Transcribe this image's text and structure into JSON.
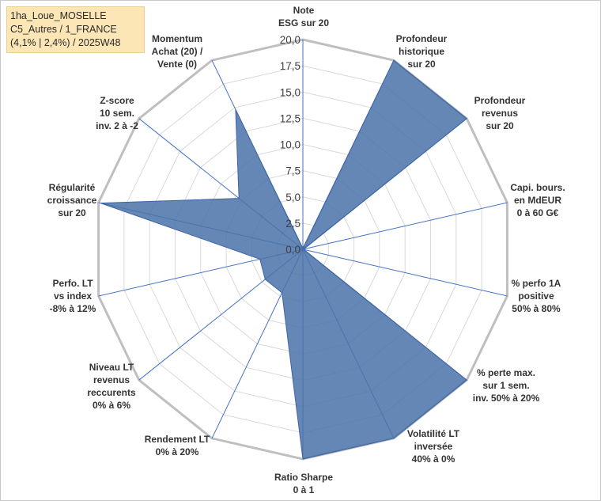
{
  "title": {
    "line1": "1ha_Loue_MOSELLE",
    "line2": "C5_Autres / 1_FRANCE",
    "line3": "(4,1% | 2,4%) / 2025W48"
  },
  "chart_data": {
    "type": "radar",
    "rmin": 0,
    "rmax": 20,
    "ticks": [
      "0,0",
      "2,5",
      "5,0",
      "7,5",
      "10,0",
      "12,5",
      "15,0",
      "17,5",
      "20,0"
    ],
    "axes": [
      {
        "label": [
          "Note",
          "ESG sur 20"
        ]
      },
      {
        "label": [
          "Profondeur",
          "historique",
          "sur 20"
        ]
      },
      {
        "label": [
          "Profondeur",
          "revenus",
          "sur 20"
        ]
      },
      {
        "label": [
          "Capi. bours.",
          "en MdEUR",
          "0 à 60 G€"
        ]
      },
      {
        "label": [
          "% perfo 1A",
          "positive",
          "50% à 80%"
        ]
      },
      {
        "label": [
          "% perte max.",
          "sur 1 sem.",
          "inv. 50% à 20%"
        ]
      },
      {
        "label": [
          "Volatilité LT",
          "inversée",
          "40% à 0%"
        ]
      },
      {
        "label": [
          "Ratio Sharpe",
          "0 à 1"
        ]
      },
      {
        "label": [
          "Rendement LT",
          "0% à 20%"
        ]
      },
      {
        "label": [
          "Niveau LT",
          "revenus",
          "reccurents",
          "0% à 6%"
        ]
      },
      {
        "label": [
          "Perfo. LT",
          "vs index",
          "-8% à 12%"
        ]
      },
      {
        "label": [
          "Régularité",
          "croissance",
          "sur 20"
        ]
      },
      {
        "label": [
          "Z-score",
          "10 sem.",
          "inv. 2 à -2"
        ]
      },
      {
        "label": [
          "Momentum",
          "Achat (20) /",
          "Vente (0)"
        ]
      }
    ],
    "series": [
      {
        "values": [
          0.1,
          20,
          20,
          0.1,
          0.1,
          20,
          20,
          20,
          4.6,
          4.6,
          4.2,
          19.8,
          7.8,
          14.8
        ]
      }
    ],
    "colors": {
      "fill": "#4a72a8",
      "stroke": "#3d64a8",
      "axis": "#4472c4",
      "grid_minor": "#d9d9d9",
      "grid_outer": "#bfbfbf"
    },
    "grid": true
  }
}
